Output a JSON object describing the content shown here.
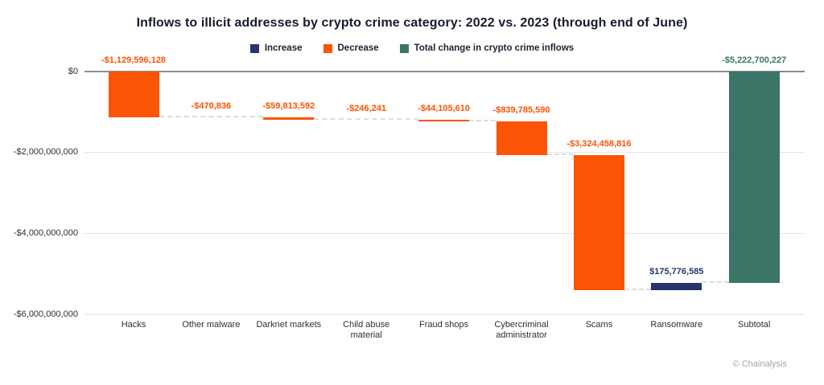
{
  "title": "Inflows to illicit addresses by crypto crime category: 2022 vs. 2023 (through end of June)",
  "footer": {
    "credit": "© Chainalysis"
  },
  "colors": {
    "increase": "#27356A",
    "decrease": "#FB5405",
    "total": "#3A7568",
    "zero_line": "#8c8c8c",
    "gridline": "#e4e4e4",
    "connector": "#dcdcdc"
  },
  "legend": [
    {
      "label": "Increase",
      "role": "increase"
    },
    {
      "label": "Decrease",
      "role": "decrease"
    },
    {
      "label": "Total change in crypto crime inflows",
      "role": "total"
    }
  ],
  "chart_data": {
    "type": "bar",
    "subtype": "waterfall",
    "title": "Inflows to illicit addresses by crypto crime category: 2022 vs. 2023 (through end of June)",
    "categories": [
      "Hacks",
      "Other malware",
      "Darknet markets",
      "Child abuse material",
      "Fraud shops",
      "Cybercriminal administrator",
      "Scams",
      "Ransomware",
      "Subtotal"
    ],
    "values": [
      -1129596128,
      -470836,
      -59813592,
      -246241,
      -44105610,
      -839785590,
      -3324458816,
      175776585,
      -5222700227
    ],
    "value_labels": [
      "-$1,129,596,128",
      "-$470,836",
      "-$59,813,592",
      "-$246,241",
      "-$44,105,610",
      "-$839,785,590",
      "-$3,324,458,816",
      "$175,776,585",
      "-$5,222,700,227"
    ],
    "bar_roles": [
      "decrease",
      "decrease",
      "decrease",
      "decrease",
      "decrease",
      "decrease",
      "decrease",
      "increase",
      "total"
    ],
    "y_ticks": [
      {
        "value": 0,
        "label": "$0"
      },
      {
        "value": -2000000000,
        "label": "-$2,000,000,000"
      },
      {
        "value": -4000000000,
        "label": "-$4,000,000,000"
      },
      {
        "value": -6000000000,
        "label": "-$6,000,000,000"
      }
    ],
    "ylim": [
      -6000000000,
      0
    ],
    "xlabel": "",
    "ylabel": "",
    "grid": true,
    "legend_position": "top"
  }
}
